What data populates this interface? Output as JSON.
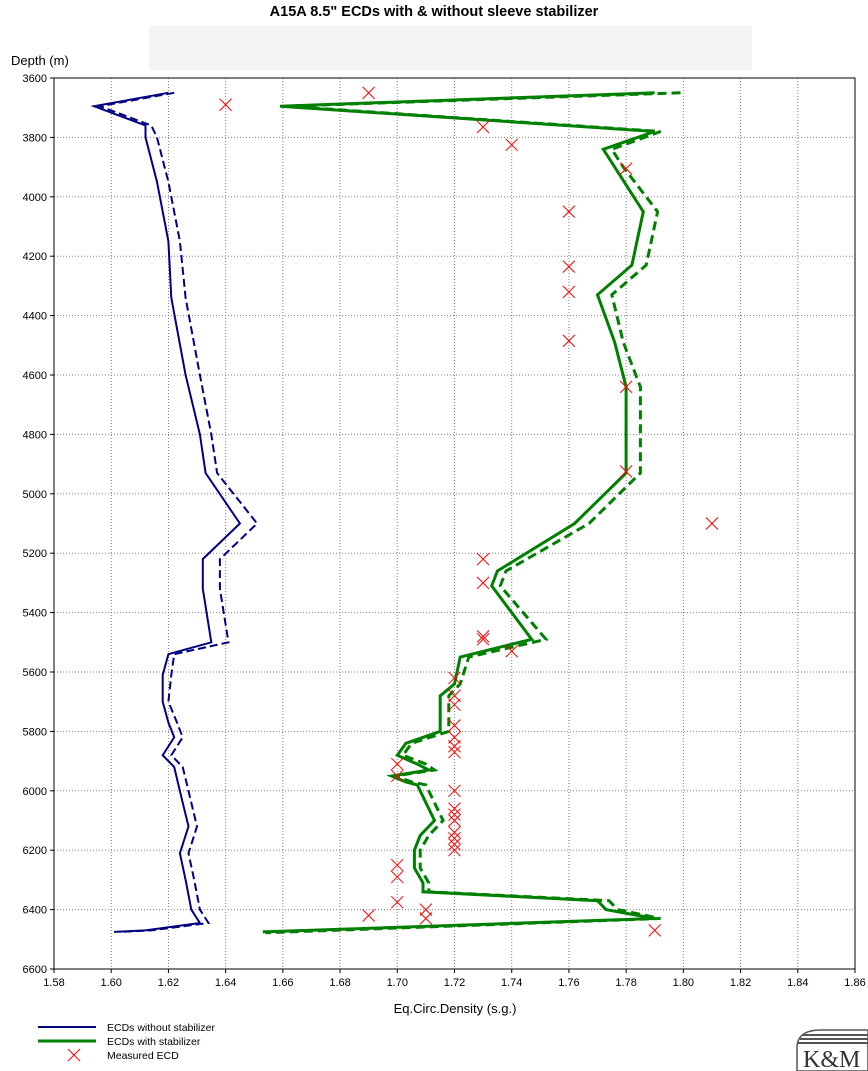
{
  "chart_data": {
    "type": "line",
    "title": "A15A 8.5\" ECDs with & without sleeve stabilizer",
    "xlabel": "Eq.Circ.Density (s.g.)",
    "ylabel": "Depth (m)",
    "xlim": [
      1.58,
      1.86
    ],
    "ylim": [
      3600,
      6600
    ],
    "y_inverted": true,
    "x_ticks": [
      "1.58",
      "1.60",
      "1.62",
      "1.64",
      "1.66",
      "1.68",
      "1.70",
      "1.72",
      "1.74",
      "1.76",
      "1.78",
      "1.80",
      "1.82",
      "1.84",
      "1.86"
    ],
    "y_ticks": [
      "3600",
      "3800",
      "4000",
      "4200",
      "4400",
      "4600",
      "4800",
      "5000",
      "5200",
      "5400",
      "5600",
      "5800",
      "6000",
      "6200",
      "6400",
      "6600"
    ],
    "grid": true,
    "legend_position": "bottom-left",
    "series": [
      {
        "name": "ECDs without stabilizer",
        "color": "#000080",
        "style": "solid",
        "points": [
          [
            1.62,
            3650
          ],
          [
            1.594,
            3695
          ],
          [
            1.612,
            3760
          ],
          [
            1.612,
            3800
          ],
          [
            1.616,
            3950
          ],
          [
            1.62,
            4150
          ],
          [
            1.621,
            4340
          ],
          [
            1.626,
            4600
          ],
          [
            1.631,
            4800
          ],
          [
            1.633,
            4930
          ],
          [
            1.645,
            5100
          ],
          [
            1.632,
            5220
          ],
          [
            1.632,
            5320
          ],
          [
            1.635,
            5500
          ],
          [
            1.62,
            5540
          ],
          [
            1.618,
            5610
          ],
          [
            1.618,
            5700
          ],
          [
            1.62,
            5770
          ],
          [
            1.622,
            5820
          ],
          [
            1.618,
            5880
          ],
          [
            1.622,
            5920
          ],
          [
            1.623,
            5960
          ],
          [
            1.625,
            6040
          ],
          [
            1.627,
            6120
          ],
          [
            1.624,
            6210
          ],
          [
            1.626,
            6300
          ],
          [
            1.628,
            6400
          ],
          [
            1.63,
            6430
          ],
          [
            1.631,
            6445
          ],
          [
            1.612,
            6470
          ],
          [
            1.601,
            6475
          ]
        ]
      },
      {
        "name": "ECDs without stabilizer",
        "color": "#000080",
        "style": "dashed",
        "points": [
          [
            1.622,
            3650
          ],
          [
            1.596,
            3695
          ],
          [
            1.614,
            3760
          ],
          [
            1.616,
            3800
          ],
          [
            1.62,
            3950
          ],
          [
            1.624,
            4150
          ],
          [
            1.626,
            4340
          ],
          [
            1.631,
            4600
          ],
          [
            1.635,
            4800
          ],
          [
            1.637,
            4930
          ],
          [
            1.651,
            5100
          ],
          [
            1.638,
            5220
          ],
          [
            1.638,
            5320
          ],
          [
            1.641,
            5500
          ],
          [
            1.622,
            5540
          ],
          [
            1.621,
            5610
          ],
          [
            1.62,
            5700
          ],
          [
            1.623,
            5770
          ],
          [
            1.625,
            5820
          ],
          [
            1.621,
            5880
          ],
          [
            1.625,
            5920
          ],
          [
            1.626,
            5960
          ],
          [
            1.628,
            6040
          ],
          [
            1.63,
            6120
          ],
          [
            1.627,
            6210
          ],
          [
            1.629,
            6300
          ],
          [
            1.631,
            6400
          ],
          [
            1.633,
            6430
          ],
          [
            1.634,
            6445
          ],
          [
            1.614,
            6470
          ],
          [
            1.603,
            6475
          ]
        ]
      },
      {
        "name": "ECDs with stabilizer",
        "color": "#008000",
        "style": "solid",
        "points": [
          [
            1.79,
            3650
          ],
          [
            1.659,
            3695
          ],
          [
            1.79,
            3780
          ],
          [
            1.772,
            3840
          ],
          [
            1.776,
            3900
          ],
          [
            1.786,
            4050
          ],
          [
            1.782,
            4230
          ],
          [
            1.77,
            4330
          ],
          [
            1.776,
            4490
          ],
          [
            1.78,
            4640
          ],
          [
            1.78,
            4930
          ],
          [
            1.762,
            5100
          ],
          [
            1.735,
            5260
          ],
          [
            1.733,
            5310
          ],
          [
            1.747,
            5490
          ],
          [
            1.722,
            5550
          ],
          [
            1.72,
            5640
          ],
          [
            1.715,
            5680
          ],
          [
            1.715,
            5800
          ],
          [
            1.703,
            5840
          ],
          [
            1.7,
            5880
          ],
          [
            1.707,
            5910
          ],
          [
            1.711,
            5930
          ],
          [
            1.698,
            5950
          ],
          [
            1.703,
            5970
          ],
          [
            1.707,
            5980
          ],
          [
            1.709,
            6020
          ],
          [
            1.713,
            6100
          ],
          [
            1.708,
            6150
          ],
          [
            1.706,
            6200
          ],
          [
            1.706,
            6260
          ],
          [
            1.709,
            6310
          ],
          [
            1.709,
            6340
          ],
          [
            1.77,
            6370
          ],
          [
            1.773,
            6400
          ],
          [
            1.79,
            6430
          ],
          [
            1.653,
            6475
          ]
        ]
      },
      {
        "name": "ECDs with stabilizer",
        "color": "#008000",
        "style": "dashed",
        "points": [
          [
            1.799,
            3650
          ],
          [
            1.661,
            3695
          ],
          [
            1.792,
            3780
          ],
          [
            1.775,
            3840
          ],
          [
            1.779,
            3900
          ],
          [
            1.791,
            4050
          ],
          [
            1.787,
            4230
          ],
          [
            1.775,
            4330
          ],
          [
            1.779,
            4490
          ],
          [
            1.785,
            4640
          ],
          [
            1.785,
            4930
          ],
          [
            1.767,
            5100
          ],
          [
            1.738,
            5260
          ],
          [
            1.736,
            5310
          ],
          [
            1.752,
            5490
          ],
          [
            1.725,
            5550
          ],
          [
            1.722,
            5640
          ],
          [
            1.718,
            5680
          ],
          [
            1.718,
            5800
          ],
          [
            1.705,
            5840
          ],
          [
            1.702,
            5880
          ],
          [
            1.71,
            5910
          ],
          [
            1.713,
            5930
          ],
          [
            1.699,
            5950
          ],
          [
            1.705,
            5970
          ],
          [
            1.71,
            5980
          ],
          [
            1.712,
            6020
          ],
          [
            1.716,
            6100
          ],
          [
            1.711,
            6150
          ],
          [
            1.708,
            6200
          ],
          [
            1.708,
            6260
          ],
          [
            1.711,
            6310
          ],
          [
            1.711,
            6340
          ],
          [
            1.774,
            6370
          ],
          [
            1.777,
            6400
          ],
          [
            1.792,
            6430
          ],
          [
            1.654,
            6478
          ]
        ]
      },
      {
        "name": "Measured ECD",
        "color": "#ff0000",
        "style": "marker-x",
        "points": [
          [
            1.64,
            3690
          ],
          [
            1.69,
            3650
          ],
          [
            1.73,
            3765
          ],
          [
            1.74,
            3825
          ],
          [
            1.78,
            3905
          ],
          [
            1.76,
            4050
          ],
          [
            1.76,
            4235
          ],
          [
            1.76,
            4320
          ],
          [
            1.76,
            4485
          ],
          [
            1.78,
            4640
          ],
          [
            1.78,
            4925
          ],
          [
            1.81,
            5100
          ],
          [
            1.73,
            5220
          ],
          [
            1.73,
            5300
          ],
          [
            1.73,
            5480
          ],
          [
            1.73,
            5490
          ],
          [
            1.74,
            5530
          ],
          [
            1.72,
            5620
          ],
          [
            1.72,
            5680
          ],
          [
            1.72,
            5710
          ],
          [
            1.72,
            5780
          ],
          [
            1.72,
            5820
          ],
          [
            1.72,
            5850
          ],
          [
            1.72,
            5870
          ],
          [
            1.7,
            5910
          ],
          [
            1.7,
            5950
          ],
          [
            1.72,
            6000
          ],
          [
            1.72,
            6060
          ],
          [
            1.72,
            6080
          ],
          [
            1.72,
            6100
          ],
          [
            1.72,
            6140
          ],
          [
            1.72,
            6160
          ],
          [
            1.72,
            6180
          ],
          [
            1.72,
            6200
          ],
          [
            1.7,
            6250
          ],
          [
            1.7,
            6290
          ],
          [
            1.7,
            6375
          ],
          [
            1.71,
            6400
          ],
          [
            1.69,
            6420
          ],
          [
            1.71,
            6430
          ],
          [
            1.79,
            6470
          ]
        ]
      }
    ]
  },
  "legend": [
    {
      "label": "ECDs without stabilizer",
      "color": "#000080",
      "kind": "line"
    },
    {
      "label": "ECDs with stabilizer",
      "color": "#008000",
      "kind": "line"
    },
    {
      "label": "Measured ECD",
      "color": "#ff0000",
      "kind": "x"
    }
  ],
  "logo_text": "K&M"
}
